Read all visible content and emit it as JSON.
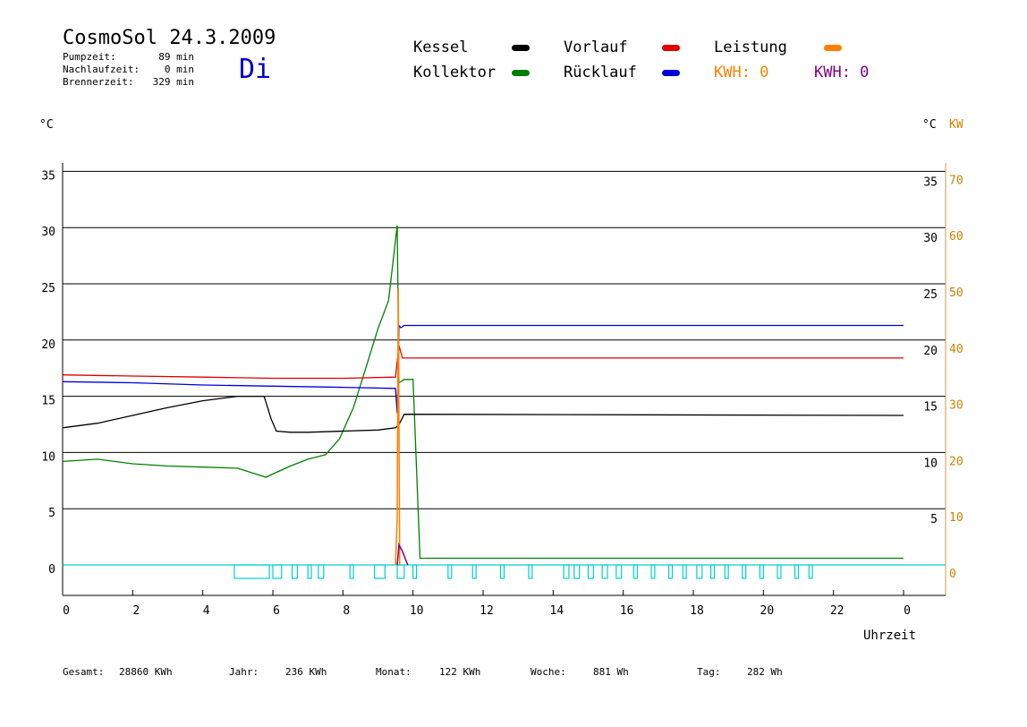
{
  "header": {
    "title": "CosmoSol 24.3.2009",
    "info": [
      {
        "label": "Pumpzeit:",
        "value": "89 min"
      },
      {
        "label": "Nachlaufzeit:",
        "value": "0 min"
      },
      {
        "label": "Brennerzeit:",
        "value": "329 min"
      }
    ],
    "day": "Di"
  },
  "legend": [
    {
      "label": "Kessel",
      "color": "#000000"
    },
    {
      "label": "Kollektor",
      "color": "#008000"
    },
    {
      "label": "Vorlauf",
      "color": "#e00000"
    },
    {
      "label": "Rücklauf",
      "color": "#0000e0"
    },
    {
      "label": "Leistung",
      "color": "#ff8000"
    },
    {
      "label": "KWH: 0",
      "color": "#ff8000"
    },
    {
      "label": "KWH: 0",
      "color": "#800080"
    }
  ],
  "footer": [
    {
      "label": "Gesamt:",
      "value": "28860 KWh"
    },
    {
      "label": "Jahr:",
      "value": "236 KWh"
    },
    {
      "label": "Monat:",
      "value": "122 KWh"
    },
    {
      "label": "Woche:",
      "value": "881 Wh"
    },
    {
      "label": "Tag:",
      "value": "282 Wh"
    }
  ],
  "chart_data": {
    "type": "line",
    "xlabel": "Uhrzeit",
    "ylabel_left": "°C",
    "ylabel_right": "°C",
    "ylabel_right2": "KW",
    "xlim": [
      0,
      24
    ],
    "ylim": [
      0,
      35
    ],
    "ylim_right2": [
      0,
      70
    ],
    "x_ticks": [
      "0",
      "2",
      "4",
      "6",
      "8",
      "10",
      "12",
      "14",
      "16",
      "18",
      "20",
      "22",
      "0"
    ],
    "y_ticks": [
      0,
      5,
      10,
      15,
      20,
      25,
      30,
      35
    ],
    "y_ticks_right": [
      5,
      10,
      15,
      20,
      25,
      30,
      35
    ],
    "y2_ticks": [
      0,
      10,
      20,
      30,
      40,
      50,
      60,
      70
    ],
    "grid": true,
    "series": [
      {
        "name": "Kollektor",
        "color": "#008000",
        "x": [
          0,
          1,
          2,
          3,
          4,
          5,
          5.8,
          6.5,
          7,
          7.5,
          7.9,
          8.3,
          8.7,
          9,
          9.3,
          9.55,
          9.6,
          9.75,
          10.0,
          10.2,
          24
        ],
        "y": [
          9.2,
          9.4,
          9.0,
          8.8,
          8.7,
          8.6,
          7.8,
          8.8,
          9.4,
          9.8,
          11.2,
          14.0,
          18.0,
          21.0,
          23.5,
          30.2,
          16.2,
          16.5,
          16.5,
          0.6,
          0.6
        ]
      },
      {
        "name": "Kessel",
        "color": "#000000",
        "x": [
          0,
          1,
          2,
          3,
          4,
          5,
          5.75,
          5.95,
          6.1,
          6.5,
          7,
          8,
          9,
          9.5,
          9.6,
          9.75,
          24
        ],
        "y": [
          12.2,
          12.6,
          13.3,
          14.0,
          14.6,
          15.0,
          15.0,
          13.0,
          11.9,
          11.8,
          11.8,
          11.9,
          12.0,
          12.2,
          12.5,
          13.4,
          13.3
        ]
      },
      {
        "name": "Vorlauf",
        "color": "#e00000",
        "x": [
          0,
          2,
          4,
          6,
          8,
          9.5,
          9.6,
          9.7,
          9.75,
          24
        ],
        "y": [
          16.9,
          16.8,
          16.7,
          16.6,
          16.6,
          16.7,
          19.5,
          18.4,
          18.4,
          18.4
        ]
      },
      {
        "name": "Rücklauf",
        "color": "#0000e0",
        "x": [
          0,
          2,
          4,
          6,
          8,
          9.5,
          9.55,
          9.6,
          9.65,
          9.75,
          24
        ],
        "y": [
          16.3,
          16.2,
          16.0,
          15.9,
          15.8,
          15.7,
          13.5,
          21.3,
          21.1,
          21.3,
          21.3
        ]
      }
    ],
    "spikes": [
      {
        "name": "Leistung",
        "color": "#ff8000",
        "x": [
          9.5,
          9.55,
          9.58,
          9.62
        ],
        "y": [
          0,
          4.2,
          24.6,
          0
        ]
      },
      {
        "name": "KWH",
        "color": "#800080",
        "x": [
          9.55,
          9.6,
          9.7,
          9.8,
          9.85
        ],
        "y": [
          0,
          1.8,
          1.2,
          0.4,
          0
        ]
      }
    ],
    "pump_periods": [
      [
        4.9,
        5.9
      ],
      [
        6.0,
        6.25
      ],
      [
        6.55,
        6.7
      ],
      [
        7.0,
        7.1
      ],
      [
        7.3,
        7.45
      ],
      [
        8.2,
        8.3
      ],
      [
        8.9,
        9.2
      ],
      [
        9.55,
        9.75
      ],
      [
        10.0,
        10.1
      ],
      [
        11.0,
        11.1
      ],
      [
        11.7,
        11.8
      ],
      [
        12.5,
        12.6
      ],
      [
        13.3,
        13.4
      ],
      [
        14.3,
        14.45
      ],
      [
        14.6,
        14.75
      ],
      [
        15.0,
        15.15
      ],
      [
        15.4,
        15.55
      ],
      [
        15.8,
        15.95
      ],
      [
        16.3,
        16.4
      ],
      [
        16.8,
        16.9
      ],
      [
        17.3,
        17.4
      ],
      [
        17.7,
        17.8
      ],
      [
        18.1,
        18.25
      ],
      [
        18.5,
        18.6
      ],
      [
        18.9,
        19.0
      ],
      [
        19.4,
        19.5
      ],
      [
        19.9,
        20.0
      ],
      [
        20.4,
        20.5
      ],
      [
        20.9,
        21.0
      ],
      [
        21.3,
        21.4
      ]
    ]
  }
}
